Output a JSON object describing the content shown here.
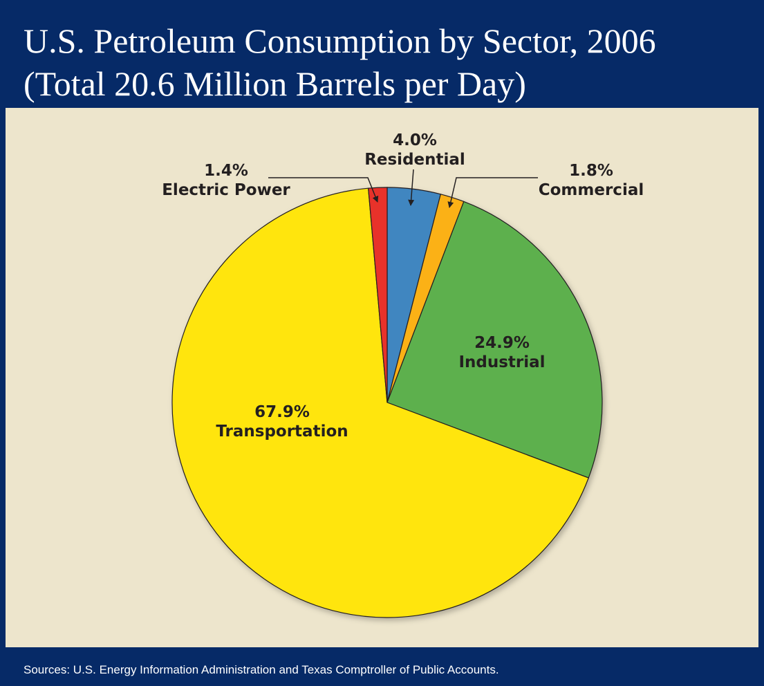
{
  "chart_data": {
    "type": "pie",
    "title": "U.S. Petroleum Consumption by Sector, 2006",
    "subtitle": "(Total 20.6 Million Barrels per Day)",
    "source": "Sources: U.S. Energy Information Administration and Texas Comptroller of Public Accounts.",
    "categories": [
      "Residential",
      "Commercial",
      "Industrial",
      "Transportation",
      "Electric Power"
    ],
    "values": [
      4.0,
      1.8,
      24.9,
      67.9,
      1.4
    ],
    "value_labels": [
      "4.0%",
      "1.8%",
      "24.9%",
      "67.9%",
      "1.4%"
    ],
    "colors": [
      "#3f86c0",
      "#fbb118",
      "#5db04e",
      "#ffe511",
      "#e8322a"
    ]
  }
}
